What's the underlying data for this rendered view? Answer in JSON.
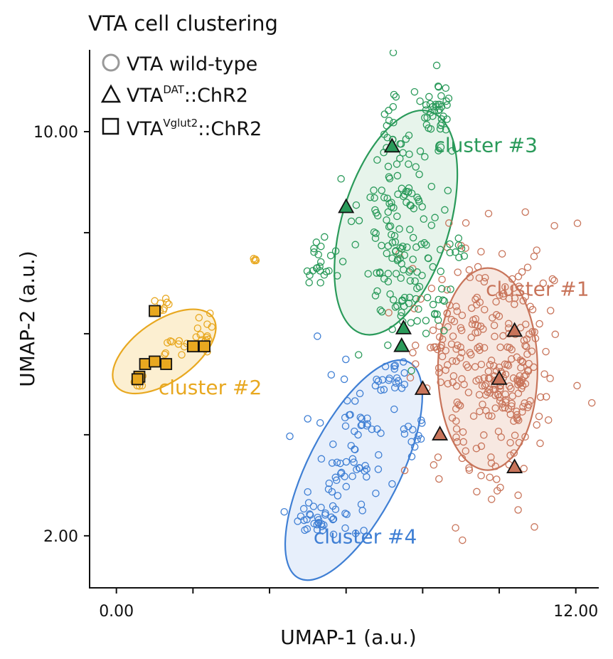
{
  "chart_data": {
    "type": "scatter",
    "title": "VTA cell clustering",
    "xlabel": "UMAP-1 (a.u.)",
    "ylabel": "UMAP-2 (a.u.)",
    "xlim": [
      -0.7,
      12.6
    ],
    "ylim": [
      0.97,
      11.62
    ],
    "x_tick_labels": [
      {
        "value": 0,
        "label": "0.00"
      },
      {
        "value": 12,
        "label": "12.00"
      }
    ],
    "y_tick_labels": [
      {
        "value": 10,
        "label": "10.00"
      },
      {
        "value": 2,
        "label": "2.00"
      }
    ],
    "x_minor_ticks": [
      2,
      4,
      6,
      8,
      10
    ],
    "y_minor_ticks": [
      4,
      6,
      8
    ],
    "legend": {
      "position": "top-left",
      "entries": [
        {
          "marker": "circle",
          "base": "VTA",
          "sup": "",
          "suffix": " wild-type"
        },
        {
          "marker": "triangle",
          "base": "VTA",
          "sup": "DAT",
          "suffix": "::ChR2"
        },
        {
          "marker": "square",
          "base": "VTA",
          "sup": "Vglut2",
          "suffix": "::ChR2"
        }
      ]
    },
    "clusters": [
      {
        "name": "cluster #1",
        "color": "#c8745a",
        "fill": "#f6e4dc",
        "ellipse": {
          "cx": 9.7,
          "cy": 5.3,
          "rx": 1.3,
          "ry": 2.0,
          "angle_deg": 0
        },
        "label_pos": [
          11.0,
          6.75
        ],
        "wildtype_blobs": [
          {
            "cx": 9.7,
            "cy": 5.4,
            "sx": 0.85,
            "sy": 1.35,
            "n": 240
          },
          {
            "cx": 10.4,
            "cy": 5.0,
            "sx": 0.35,
            "sy": 0.5,
            "n": 50
          },
          {
            "cx": 8.6,
            "cy": 5.9,
            "sx": 0.5,
            "sy": 0.25,
            "n": 18
          }
        ],
        "triangles": [
          [
            10.4,
            6.05
          ],
          [
            10.0,
            5.1
          ],
          [
            8.0,
            4.9
          ],
          [
            8.45,
            4.0
          ],
          [
            10.4,
            3.35
          ]
        ]
      },
      {
        "name": "cluster #2",
        "color": "#e8a820",
        "fill": "#fbecc9",
        "ellipse": {
          "cx": 1.25,
          "cy": 5.65,
          "rx": 1.55,
          "ry": 0.6,
          "angle_deg": -35
        },
        "label_pos": [
          2.45,
          4.8
        ],
        "wildtype_blobs": [
          {
            "cx": 2.3,
            "cy": 5.95,
            "sx": 0.15,
            "sy": 0.18,
            "n": 14
          },
          {
            "cx": 1.45,
            "cy": 5.8,
            "sx": 0.28,
            "sy": 0.25,
            "n": 10
          },
          {
            "cx": 1.3,
            "cy": 6.6,
            "sx": 0.14,
            "sy": 0.06,
            "n": 8
          },
          {
            "cx": 0.55,
            "cy": 5.0,
            "sx": 0.1,
            "sy": 0.1,
            "n": 6
          },
          {
            "cx": 3.6,
            "cy": 7.45,
            "sx": 0.05,
            "sy": 0.02,
            "n": 4
          }
        ],
        "squares": [
          [
            1.0,
            6.45
          ],
          [
            2.0,
            5.75
          ],
          [
            2.3,
            5.75
          ],
          [
            0.75,
            5.4
          ],
          [
            1.0,
            5.45
          ],
          [
            1.3,
            5.4
          ],
          [
            0.6,
            5.15
          ],
          [
            0.55,
            5.1
          ]
        ]
      },
      {
        "name": "cluster #3",
        "color": "#2a9a5a",
        "fill": "#e3f2e8",
        "ellipse": {
          "cx": 7.3,
          "cy": 8.2,
          "rx": 1.4,
          "ry": 2.3,
          "angle_deg": 17
        },
        "label_pos": [
          9.65,
          9.6
        ],
        "wildtype_blobs": [
          {
            "cx": 7.35,
            "cy": 8.3,
            "sx": 0.55,
            "sy": 1.2,
            "n": 150
          },
          {
            "cx": 8.4,
            "cy": 10.4,
            "sx": 0.25,
            "sy": 0.35,
            "n": 38
          },
          {
            "cx": 5.3,
            "cy": 7.45,
            "sx": 0.28,
            "sy": 0.3,
            "n": 24
          },
          {
            "cx": 7.9,
            "cy": 6.5,
            "sx": 0.4,
            "sy": 0.25,
            "n": 22
          },
          {
            "cx": 8.9,
            "cy": 7.7,
            "sx": 0.15,
            "sy": 0.15,
            "n": 8
          }
        ],
        "triangles": [
          [
            7.2,
            9.7
          ],
          [
            6.0,
            8.5
          ],
          [
            7.5,
            6.1
          ],
          [
            7.45,
            5.75
          ]
        ]
      },
      {
        "name": "cluster #4",
        "color": "#3f7fd4",
        "fill": "#e3ecfa",
        "ellipse": {
          "cx": 6.2,
          "cy": 3.3,
          "rx": 1.2,
          "ry": 2.4,
          "angle_deg": 27
        },
        "label_pos": [
          6.5,
          1.85
        ],
        "wildtype_blobs": [
          {
            "cx": 6.2,
            "cy": 3.6,
            "sx": 0.45,
            "sy": 0.9,
            "n": 70
          },
          {
            "cx": 5.1,
            "cy": 2.3,
            "sx": 0.35,
            "sy": 0.15,
            "n": 30
          },
          {
            "cx": 7.2,
            "cy": 5.1,
            "sx": 0.25,
            "sy": 0.2,
            "n": 20
          },
          {
            "cx": 7.8,
            "cy": 4.1,
            "sx": 0.15,
            "sy": 0.18,
            "n": 12
          }
        ],
        "triangles": []
      }
    ]
  }
}
